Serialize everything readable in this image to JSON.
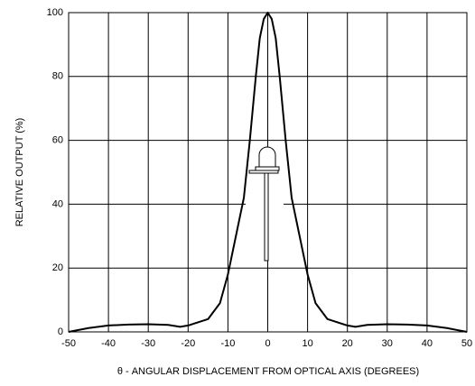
{
  "chart_data": {
    "type": "line",
    "xlabel": "θ - ANGULAR DISPLACEMENT FROM OPTICAL AXIS (DEGREES)",
    "ylabel": "RELATIVE OUTPUT (%)",
    "x": [
      -50,
      -45,
      -40,
      -35,
      -30,
      -25,
      -22,
      -20,
      -15,
      -12,
      -10,
      -8,
      -6,
      -4.5,
      -3,
      -2,
      -1,
      0,
      1,
      2,
      3,
      4.5,
      6,
      8,
      10,
      12,
      15,
      20,
      22,
      25,
      30,
      35,
      40,
      45,
      50
    ],
    "series": [
      {
        "color": "#000000",
        "values": [
          0,
          1.2,
          2,
          2.3,
          2.4,
          2.2,
          1.6,
          2,
          4,
          9,
          18,
          30,
          42,
          60,
          80,
          92,
          98,
          100,
          98,
          92,
          80,
          60,
          42,
          30,
          18,
          9,
          4,
          2,
          1.6,
          2.2,
          2.4,
          2.3,
          2,
          1.2,
          0
        ]
      }
    ],
    "xlim": [
      -50,
      50
    ],
    "xticks": [
      -50,
      -40,
      -30,
      -20,
      -10,
      0,
      10,
      20,
      30,
      40,
      50
    ],
    "ylim": [
      0,
      100
    ],
    "yticks": [
      0,
      20,
      40,
      60,
      80,
      100
    ],
    "grid": true
  }
}
